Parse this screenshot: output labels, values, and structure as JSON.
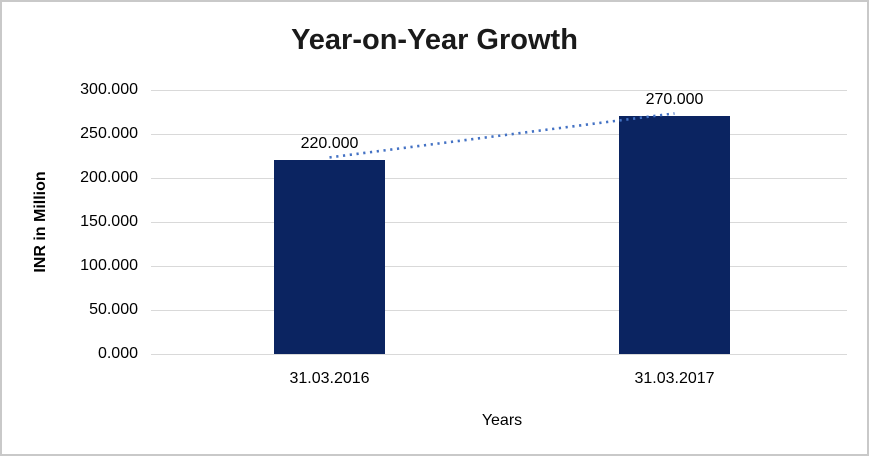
{
  "chart_data": {
    "type": "bar",
    "title": "Year-on-Year Growth",
    "categories": [
      "31.03.2016",
      "31.03.2017"
    ],
    "values": [
      220,
      270
    ],
    "value_labels": [
      "220.000",
      "270.000"
    ],
    "xlabel": "Years",
    "ylabel": "INR in Million",
    "ylim": [
      0,
      300
    ],
    "ytick_step": 50,
    "ytick_labels": [
      "300.000",
      "250.000",
      "200.000",
      "150.000",
      "100.000",
      "50.000",
      "0.000"
    ],
    "grid": true,
    "legend": false,
    "bar_color": "#0b2461",
    "gridline_color": "#d9d9d9",
    "text_color": "#000000",
    "title_color": "#1a1a1a",
    "frame_border_color": "#c9c9c9",
    "trendline": {
      "type": "linear",
      "style": "dotted",
      "color": "#4472c4",
      "from_value": 220,
      "to_value": 270
    }
  }
}
